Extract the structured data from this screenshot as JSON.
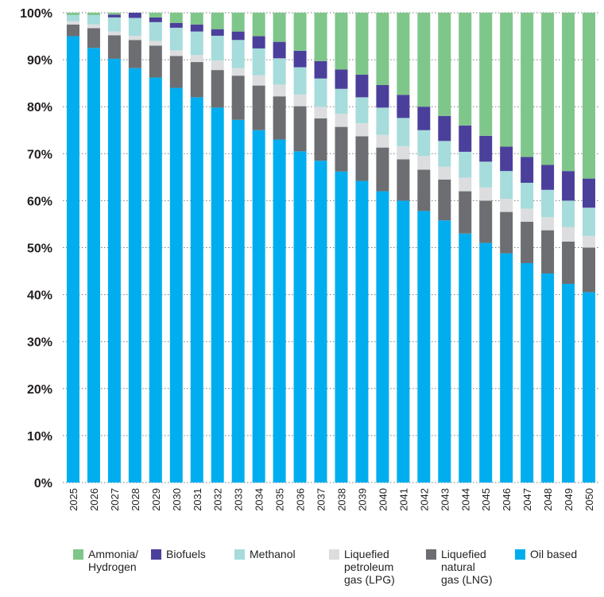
{
  "chart_data": {
    "type": "bar",
    "stacked": true,
    "categories": [
      "2025",
      "2026",
      "2027",
      "2028",
      "2029",
      "2030",
      "2031",
      "2032",
      "2033",
      "2034",
      "2035",
      "2036",
      "2037",
      "2038",
      "2039",
      "2040",
      "2041",
      "2042",
      "2043",
      "2044",
      "2045",
      "2046",
      "2047",
      "2048",
      "2049",
      "2050"
    ],
    "series": [
      {
        "name": "Oil based",
        "color": "#00aeef",
        "values": [
          95.0,
          92.5,
          90.2,
          88.2,
          86.2,
          84.0,
          82.0,
          79.8,
          77.2,
          75.0,
          73.0,
          70.5,
          68.5,
          66.2,
          64.2,
          62.0,
          60.0,
          57.8,
          55.8,
          53.0,
          51.0,
          48.8,
          46.7,
          44.5,
          42.3,
          40.5
        ]
      },
      {
        "name": "Liquefied\nnatural\ngas (LNG)",
        "color": "#6d6e71",
        "values": [
          2.5,
          4.2,
          5.0,
          6.0,
          6.8,
          6.8,
          7.5,
          8.0,
          9.4,
          9.5,
          9.2,
          9.6,
          9.0,
          9.5,
          9.5,
          9.3,
          8.8,
          8.8,
          8.7,
          9.0,
          9.0,
          8.8,
          8.8,
          9.2,
          9.0,
          9.5
        ]
      },
      {
        "name": "Liquefied\npetroleum\ngas (LPG)",
        "color": "#dcdddf",
        "values": [
          0.7,
          0.8,
          0.8,
          0.9,
          1.0,
          1.2,
          1.5,
          2.0,
          1.6,
          2.2,
          2.5,
          2.5,
          2.5,
          2.8,
          2.8,
          2.7,
          2.8,
          2.9,
          2.7,
          2.9,
          2.8,
          2.8,
          2.8,
          2.8,
          3.1,
          2.5
        ]
      },
      {
        "name": "Methanol",
        "color": "#a6dcdb",
        "values": [
          1.3,
          2.0,
          3.0,
          3.8,
          4.0,
          4.8,
          5.0,
          5.3,
          6.0,
          5.7,
          5.6,
          5.8,
          6.0,
          5.3,
          5.5,
          5.8,
          6.0,
          5.5,
          5.5,
          5.5,
          5.5,
          5.9,
          5.5,
          5.8,
          5.6,
          6.0
        ]
      },
      {
        "name": "Biofuels",
        "color": "#4b3f9c",
        "values": [
          0.0,
          0.0,
          0.6,
          1.1,
          1.0,
          1.0,
          1.5,
          1.4,
          1.8,
          2.6,
          3.5,
          3.5,
          3.7,
          4.1,
          4.8,
          4.8,
          4.9,
          5.0,
          5.3,
          5.6,
          5.5,
          5.2,
          5.5,
          5.3,
          6.3,
          6.2
        ]
      },
      {
        "name": "Ammonia/\nHydrogen",
        "color": "#7fc68a",
        "values": [
          0.5,
          0.5,
          0.4,
          0.0,
          1.0,
          2.2,
          2.5,
          3.5,
          4.0,
          5.0,
          6.2,
          8.1,
          10.3,
          12.1,
          13.2,
          15.4,
          17.5,
          20.0,
          22.0,
          24.0,
          26.2,
          28.5,
          30.7,
          32.4,
          33.7,
          35.3
        ]
      }
    ],
    "legend_order": [
      "Ammonia/\nHydrogen",
      "Biofuels",
      "Methanol",
      "Liquefied\npetroleum\ngas (LPG)",
      "Liquefied\nnatural\ngas (LNG)",
      "Oil based"
    ],
    "legend_position": "bottom",
    "y_ticks": [
      "0%",
      "10%",
      "20%",
      "30%",
      "40%",
      "50%",
      "60%",
      "70%",
      "80%",
      "90%",
      "100%"
    ],
    "ylim": [
      0,
      100
    ],
    "grid": "horizontal-dotted",
    "title": "",
    "xlabel": "",
    "ylabel": ""
  }
}
